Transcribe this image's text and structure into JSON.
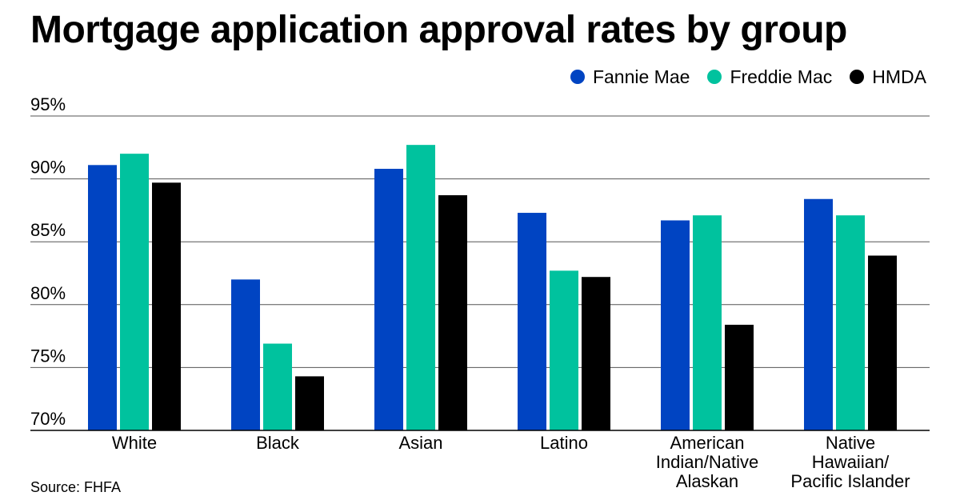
{
  "title": "Mortgage application approval rates by group",
  "source": "Source: FHFA",
  "colors": {
    "fannie_mae": "#0044c2",
    "freddie_mac": "#00c29e",
    "hmda": "#000000",
    "gridline": "#555555"
  },
  "legend": [
    {
      "label": "Fannie Mae",
      "color": "#0044c2"
    },
    {
      "label": "Freddie Mac",
      "color": "#00c29e"
    },
    {
      "label": "HMDA",
      "color": "#000000"
    }
  ],
  "chart_data": {
    "type": "bar",
    "title": "Mortgage application approval rates by group",
    "xlabel": "",
    "ylabel": "",
    "ylim": [
      70,
      95
    ],
    "yticks": [
      70,
      75,
      80,
      85,
      90,
      95
    ],
    "ytick_labels": [
      "70%",
      "75%",
      "80%",
      "85%",
      "90%",
      "95%"
    ],
    "grid": true,
    "legend_position": "top-right",
    "categories": [
      [
        "White"
      ],
      [
        "Black"
      ],
      [
        "Asian"
      ],
      [
        "Latino"
      ],
      [
        "American",
        "Indian/Native",
        "Alaskan"
      ],
      [
        "Native",
        "Hawaiian/",
        "Pacific Islander"
      ]
    ],
    "series": [
      {
        "name": "Fannie Mae",
        "color": "#0044c2",
        "values": [
          91.1,
          82.0,
          90.8,
          87.3,
          86.7,
          88.4
        ]
      },
      {
        "name": "Freddie Mac",
        "color": "#00c29e",
        "values": [
          92.0,
          76.9,
          92.7,
          82.7,
          87.1,
          87.1
        ]
      },
      {
        "name": "HMDA",
        "color": "#000000",
        "values": [
          89.7,
          74.3,
          88.7,
          82.2,
          78.4,
          83.9
        ]
      }
    ]
  }
}
